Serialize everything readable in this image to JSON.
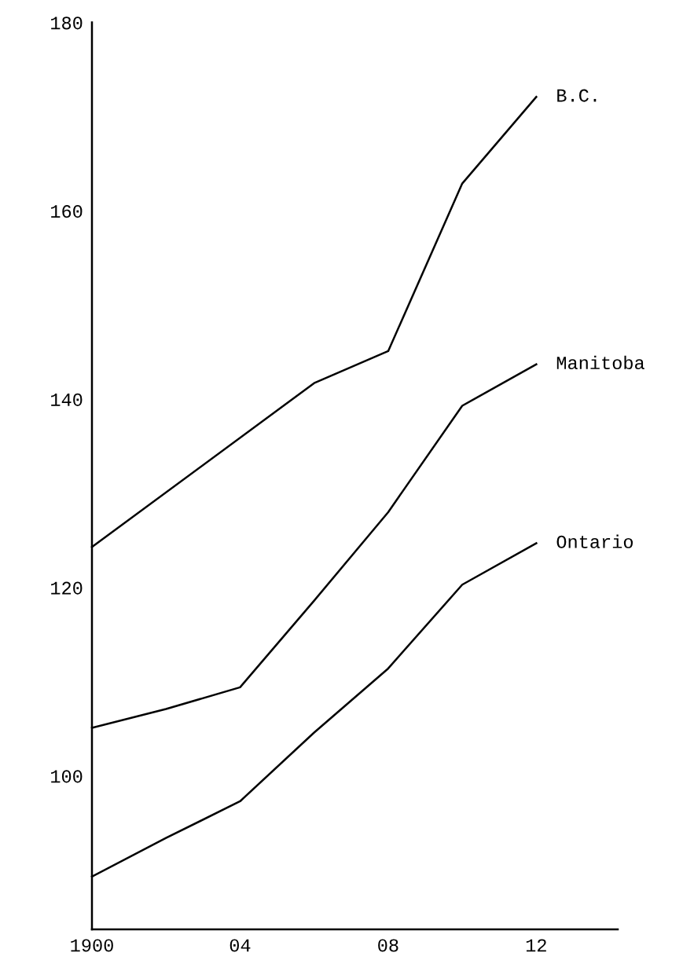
{
  "chart_data": {
    "type": "line",
    "xlim": [
      1900,
      1914.2
    ],
    "ylim": [
      83.7,
      180
    ],
    "xticks": [
      1900,
      {
        "value": 1904,
        "label": "04"
      },
      {
        "value": 1908,
        "label": "08"
      },
      {
        "value": 1912,
        "label": "12"
      }
    ],
    "yticks": [
      100,
      120,
      140,
      160,
      180
    ],
    "grid": false,
    "legend": false,
    "marker": "none",
    "line_style": "solid",
    "series": [
      {
        "name": "B.C.",
        "color": "#000000",
        "x": [
          1900,
          1906,
          1908,
          1910,
          1912
        ],
        "values": [
          124.3,
          141.7,
          145.1,
          162.9,
          172.1
        ]
      },
      {
        "name": "Manitoba",
        "color": "#000000",
        "x": [
          1900,
          1902,
          1904,
          1906,
          1908,
          1910,
          1912
        ],
        "values": [
          105.1,
          107.1,
          109.4,
          118.6,
          128,
          139.3,
          143.7
        ]
      },
      {
        "name": "Ontario",
        "color": "#000000",
        "x": [
          1900,
          1902,
          1904,
          1906,
          1908,
          1910,
          1912
        ],
        "values": [
          89.3,
          93.4,
          97.3,
          104.6,
          111.4,
          120.3,
          124.7
        ]
      }
    ]
  }
}
